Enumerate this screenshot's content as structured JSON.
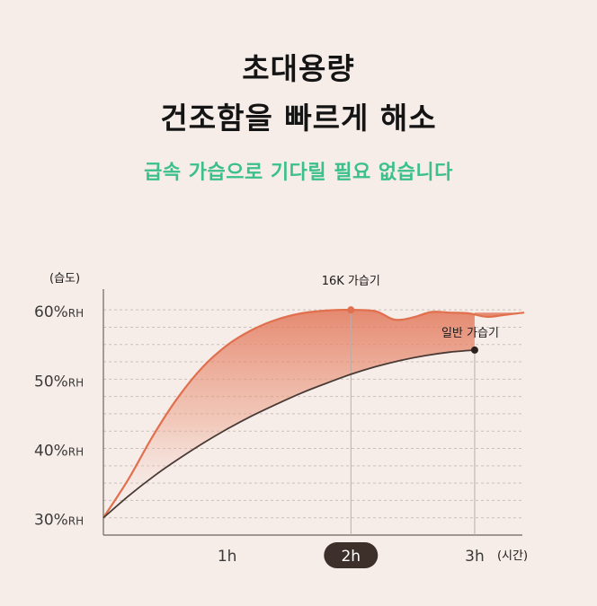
{
  "header": {
    "title_line1": "초대용량",
    "title_line2": "건조함을 빠르게 해소",
    "subtitle": "급속 가습으로 기다릴 필요 없습니다"
  },
  "colors": {
    "background": "#f6ece8",
    "title": "#141414",
    "subtitle": "#3cc08a",
    "series_16k": "#e0704e",
    "series_general": "#4a3a35",
    "highlight_pill": "#3d302b"
  },
  "chart_data": {
    "type": "line",
    "ylabel": "(습도)",
    "xlabel": "(시간)",
    "y_ticks": [
      {
        "value": 30,
        "label": "30%RH"
      },
      {
        "value": 40,
        "label": "40%RH"
      },
      {
        "value": 50,
        "label": "50%RH"
      },
      {
        "value": 60,
        "label": "60%RH"
      }
    ],
    "x_ticks": [
      {
        "value": 1,
        "label": "1h",
        "highlight": false
      },
      {
        "value": 2,
        "label": "2h",
        "highlight": true
      },
      {
        "value": 3,
        "label": "3h",
        "highlight": false
      }
    ],
    "xlim": [
      0,
      3.4
    ],
    "ylim": [
      27.5,
      63
    ],
    "grid": true,
    "series": [
      {
        "name": "16K 가습기",
        "x": [
          0,
          0.2,
          0.4,
          0.6,
          0.8,
          1.0,
          1.2,
          1.4,
          1.6,
          1.8,
          2.0,
          2.2,
          2.35,
          2.5,
          2.65,
          2.8,
          2.95,
          3.1,
          3.25,
          3.4
        ],
        "y": [
          30,
          35.5,
          41.8,
          47.3,
          51.7,
          54.9,
          57.1,
          58.6,
          59.5,
          59.9,
          60.0,
          59.8,
          58.6,
          58.9,
          59.7,
          59.6,
          59.5,
          59.0,
          59.3,
          59.6
        ],
        "marker_x": 2,
        "marker_y": 60
      },
      {
        "name": "일반 가습기",
        "x": [
          0,
          0.2,
          0.4,
          0.6,
          0.8,
          1.0,
          1.2,
          1.4,
          1.6,
          1.8,
          2.0,
          2.2,
          2.4,
          2.6,
          2.8,
          3.0
        ],
        "y": [
          30,
          33.1,
          35.9,
          38.4,
          40.7,
          42.8,
          44.7,
          46.4,
          48.0,
          49.4,
          50.7,
          51.8,
          52.7,
          53.4,
          53.9,
          54.2
        ],
        "marker_x": 3,
        "marker_y": 54.2
      }
    ]
  }
}
